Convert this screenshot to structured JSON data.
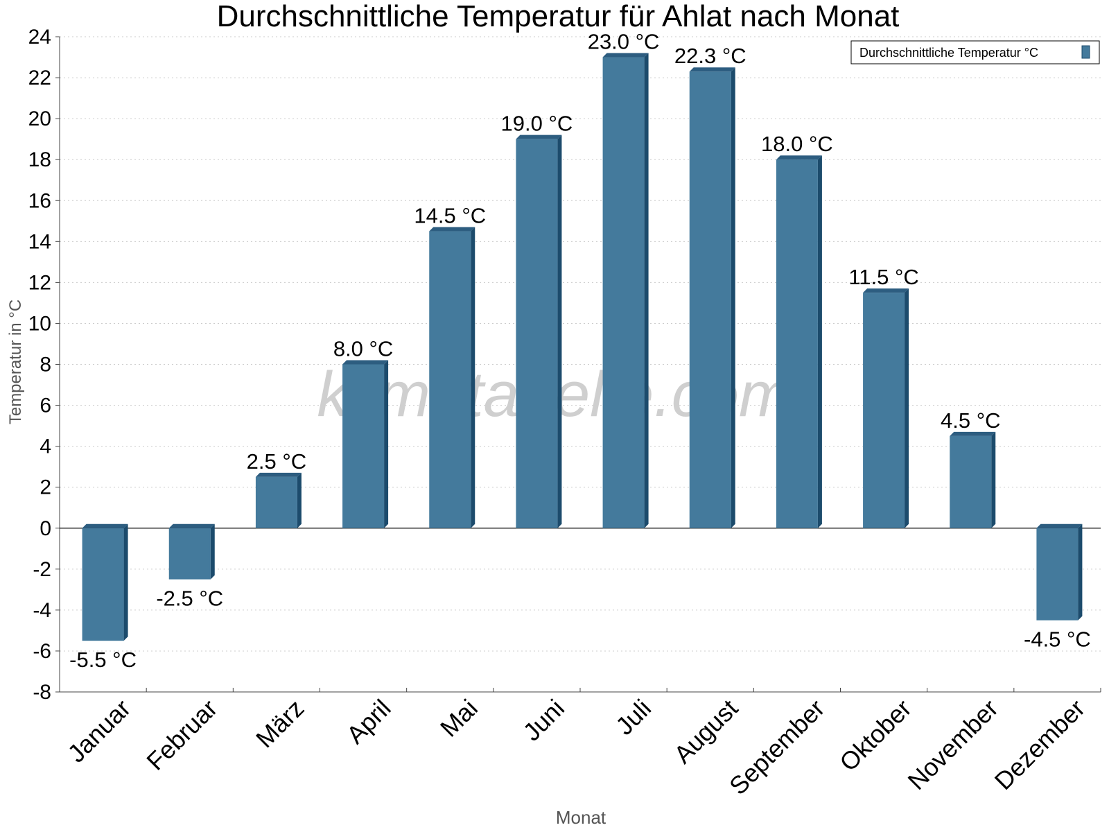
{
  "chart_data": {
    "type": "bar",
    "title": "Durchschnittliche Temperatur für Ahlat nach Monat",
    "xlabel": "Monat",
    "ylabel": "Temperatur in °C",
    "ylim": [
      -8,
      24
    ],
    "yticks": [
      -8,
      -6,
      -4,
      -2,
      0,
      2,
      4,
      6,
      8,
      10,
      12,
      14,
      16,
      18,
      20,
      22,
      24
    ],
    "grid": true,
    "legend": {
      "position": "top-right",
      "entries": [
        "Durchschnittliche Temperatur °C"
      ]
    },
    "unit": "°C",
    "categories": [
      "Januar",
      "Februar",
      "März",
      "April",
      "Mai",
      "Juni",
      "Juli",
      "August",
      "September",
      "Oktober",
      "November",
      "Dezember"
    ],
    "series": [
      {
        "name": "Durchschnittliche Temperatur °C",
        "color": "#447a9c",
        "values": [
          -5.5,
          -2.5,
          2.5,
          8.0,
          14.5,
          19.0,
          23.0,
          22.3,
          18.0,
          11.5,
          4.5,
          -4.5
        ],
        "labels": [
          "-5.5 °C",
          "-2.5 °C",
          "2.5 °C",
          "8.0 °C",
          "14.5 °C",
          "19.0 °C",
          "23.0 °C",
          "22.3 °C",
          "18.0 °C",
          "11.5 °C",
          "4.5 °C",
          "-4.5 °C"
        ]
      }
    ]
  },
  "watermark": "klimatabelle.com",
  "colors": {
    "bar_front": "#447a9c",
    "bar_side": "#1c4b6c",
    "bar_top": "#2d5d80"
  }
}
